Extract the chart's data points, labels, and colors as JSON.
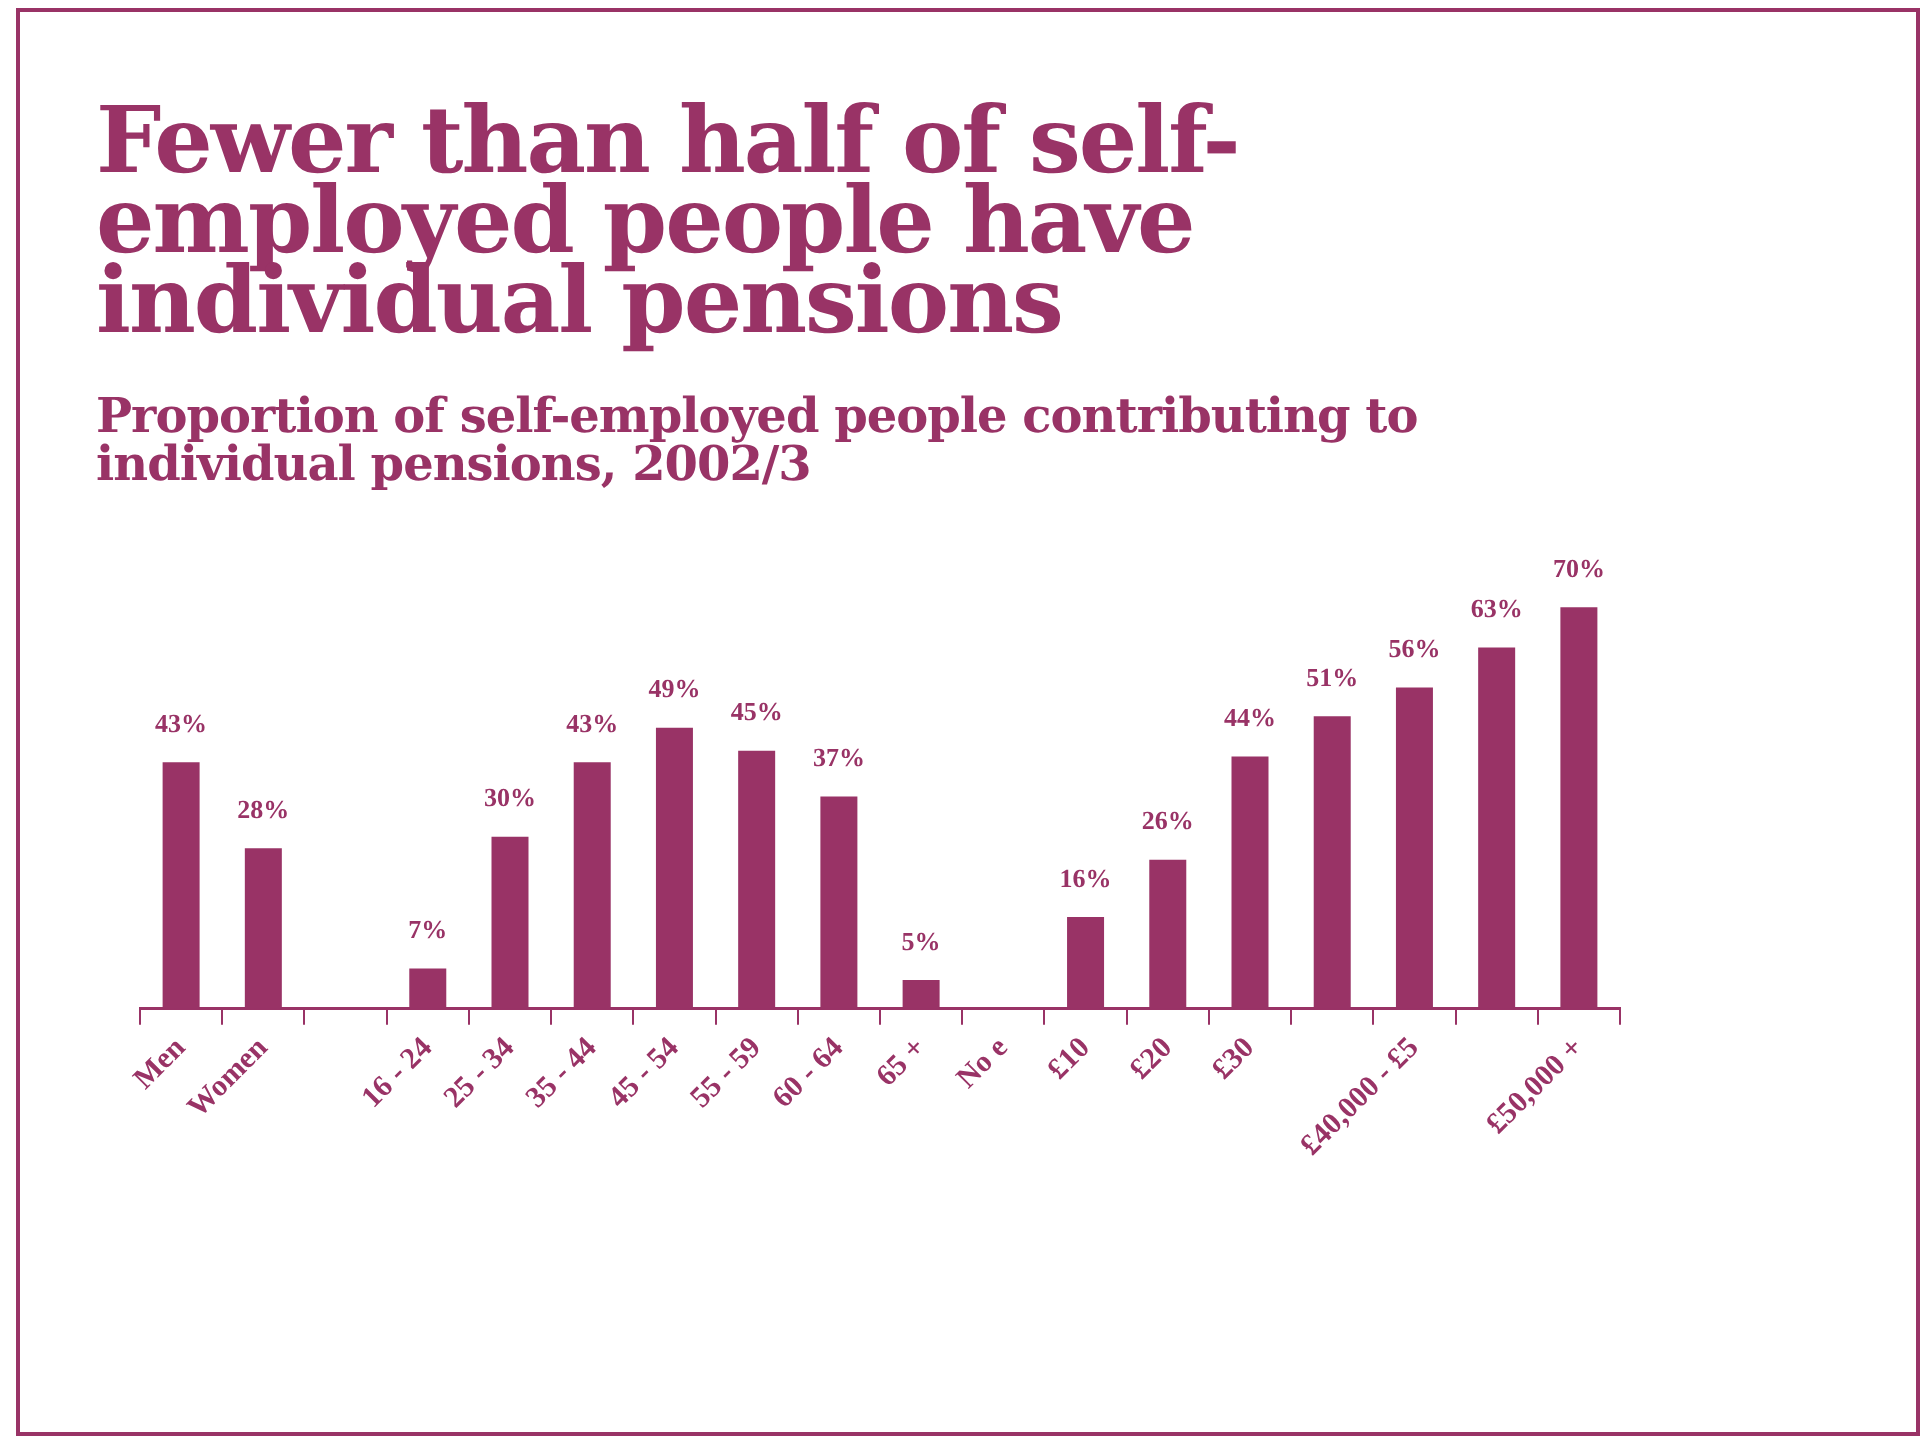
{
  "chart_data": {
    "type": "bar",
    "title": "Fewer than half of self-employed people have individual pensions",
    "subtitle": "Proportion of self-employed people contributing to individual pensions, 2002/3",
    "categories": [
      "Men",
      "Women",
      null,
      "16 - 24",
      "25 - 34",
      "35 - 44",
      "45 - 54",
      "55 - 59",
      "60 - 64",
      "65 +",
      "No e",
      "£10",
      "£20",
      "£30",
      null,
      "£40,000 - £5",
      null,
      "£50,000 +"
    ],
    "values": [
      43,
      28,
      null,
      7,
      30,
      43,
      49,
      45,
      37,
      5,
      null,
      16,
      26,
      44,
      51,
      56,
      63,
      70
    ],
    "value_labels": [
      "43%",
      "28%",
      null,
      "7%",
      "30%",
      "43%",
      "49%",
      "45%",
      "37%",
      "5%",
      null,
      "16%",
      "26%",
      "44%",
      "51%",
      "56%",
      "63%",
      "70%"
    ],
    "color": "#993366",
    "grid": false,
    "legend": false
  }
}
